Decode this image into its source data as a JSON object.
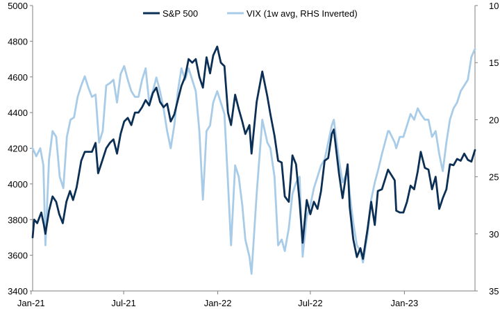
{
  "chart_data": {
    "type": "line",
    "legend": {
      "placement": "top-center"
    },
    "grid": false,
    "x_axis": {
      "type": "date",
      "range": [
        "2021-01-04",
        "2023-05-19"
      ],
      "ticks": [
        {
          "label": "Jan-21",
          "date": "2021-01-01"
        },
        {
          "label": "Jul-21",
          "date": "2021-07-01"
        },
        {
          "label": "Jan-22",
          "date": "2022-01-01"
        },
        {
          "label": "Jul-22",
          "date": "2022-07-01"
        },
        {
          "label": "Jan-23",
          "date": "2023-01-01"
        }
      ]
    },
    "y_left": {
      "range": [
        3400,
        5000
      ],
      "ticks": [
        3400,
        3600,
        3800,
        4000,
        4200,
        4400,
        4600,
        4800,
        5000
      ]
    },
    "y_right": {
      "range": [
        10,
        35
      ],
      "inverted": true,
      "ticks": [
        10,
        15,
        20,
        25,
        30,
        35
      ]
    },
    "series": [
      {
        "name": "S&P 500",
        "axis": "left",
        "color": "#0b2f55",
        "points": [
          [
            "2021-01-04",
            3700
          ],
          [
            "2021-01-07",
            3800
          ],
          [
            "2021-01-13",
            3780
          ],
          [
            "2021-01-21",
            3840
          ],
          [
            "2021-01-26",
            3770
          ],
          [
            "2021-01-29",
            3720
          ],
          [
            "2021-02-05",
            3850
          ],
          [
            "2021-02-12",
            3930
          ],
          [
            "2021-02-19",
            3900
          ],
          [
            "2021-02-25",
            3830
          ],
          [
            "2021-03-04",
            3780
          ],
          [
            "2021-03-11",
            3900
          ],
          [
            "2021-03-18",
            3960
          ],
          [
            "2021-03-24",
            3910
          ],
          [
            "2021-03-31",
            3980
          ],
          [
            "2021-04-09",
            4130
          ],
          [
            "2021-04-16",
            4180
          ],
          [
            "2021-04-23",
            4180
          ],
          [
            "2021-04-30",
            4180
          ],
          [
            "2021-05-07",
            4230
          ],
          [
            "2021-05-12",
            4060
          ],
          [
            "2021-05-19",
            4120
          ],
          [
            "2021-05-28",
            4200
          ],
          [
            "2021-06-04",
            4230
          ],
          [
            "2021-06-11",
            4250
          ],
          [
            "2021-06-18",
            4170
          ],
          [
            "2021-06-25",
            4280
          ],
          [
            "2021-07-02",
            4350
          ],
          [
            "2021-07-09",
            4370
          ],
          [
            "2021-07-16",
            4330
          ],
          [
            "2021-07-23",
            4400
          ],
          [
            "2021-07-30",
            4400
          ],
          [
            "2021-08-06",
            4430
          ],
          [
            "2021-08-13",
            4470
          ],
          [
            "2021-08-20",
            4440
          ],
          [
            "2021-08-27",
            4510
          ],
          [
            "2021-09-03",
            4540
          ],
          [
            "2021-09-10",
            4460
          ],
          [
            "2021-09-17",
            4430
          ],
          [
            "2021-09-24",
            4450
          ],
          [
            "2021-10-01",
            4350
          ],
          [
            "2021-10-08",
            4390
          ],
          [
            "2021-10-15",
            4470
          ],
          [
            "2021-10-22",
            4550
          ],
          [
            "2021-10-29",
            4600
          ],
          [
            "2021-11-05",
            4700
          ],
          [
            "2021-11-12",
            4680
          ],
          [
            "2021-11-19",
            4700
          ],
          [
            "2021-11-26",
            4600
          ],
          [
            "2021-12-03",
            4540
          ],
          [
            "2021-12-10",
            4710
          ],
          [
            "2021-12-17",
            4620
          ],
          [
            "2021-12-23",
            4720
          ],
          [
            "2021-12-31",
            4770
          ],
          [
            "2022-01-07",
            4680
          ],
          [
            "2022-01-14",
            4660
          ],
          [
            "2022-01-21",
            4400
          ],
          [
            "2022-01-27",
            4330
          ],
          [
            "2022-02-04",
            4500
          ],
          [
            "2022-02-11",
            4420
          ],
          [
            "2022-02-18",
            4350
          ],
          [
            "2022-02-24",
            4280
          ],
          [
            "2022-03-04",
            4330
          ],
          [
            "2022-03-08",
            4170
          ],
          [
            "2022-03-18",
            4460
          ],
          [
            "2022-03-29",
            4630
          ],
          [
            "2022-04-08",
            4490
          ],
          [
            "2022-04-14",
            4390
          ],
          [
            "2022-04-22",
            4270
          ],
          [
            "2022-04-29",
            4130
          ],
          [
            "2022-05-06",
            4120
          ],
          [
            "2022-05-12",
            3930
          ],
          [
            "2022-05-20",
            3900
          ],
          [
            "2022-05-27",
            4160
          ],
          [
            "2022-06-03",
            4110
          ],
          [
            "2022-06-10",
            3900
          ],
          [
            "2022-06-16",
            3670
          ],
          [
            "2022-06-24",
            3910
          ],
          [
            "2022-07-01",
            3830
          ],
          [
            "2022-07-08",
            3900
          ],
          [
            "2022-07-15",
            3860
          ],
          [
            "2022-07-22",
            3960
          ],
          [
            "2022-07-29",
            4130
          ],
          [
            "2022-08-05",
            4145
          ],
          [
            "2022-08-12",
            4280
          ],
          [
            "2022-08-16",
            4305
          ],
          [
            "2022-08-26",
            4060
          ],
          [
            "2022-09-02",
            3920
          ],
          [
            "2022-09-12",
            4110
          ],
          [
            "2022-09-16",
            3870
          ],
          [
            "2022-09-23",
            3690
          ],
          [
            "2022-09-30",
            3590
          ],
          [
            "2022-10-07",
            3640
          ],
          [
            "2022-10-12",
            3580
          ],
          [
            "2022-10-21",
            3750
          ],
          [
            "2022-10-28",
            3900
          ],
          [
            "2022-11-04",
            3770
          ],
          [
            "2022-11-10",
            3960
          ],
          [
            "2022-11-18",
            3970
          ],
          [
            "2022-11-30",
            4080
          ],
          [
            "2022-12-02",
            4070
          ],
          [
            "2022-12-13",
            4020
          ],
          [
            "2022-12-16",
            3850
          ],
          [
            "2022-12-23",
            3840
          ],
          [
            "2022-12-30",
            3840
          ],
          [
            "2023-01-06",
            3900
          ],
          [
            "2023-01-13",
            3990
          ],
          [
            "2023-01-20",
            3970
          ],
          [
            "2023-01-27",
            4070
          ],
          [
            "2023-02-02",
            4180
          ],
          [
            "2023-02-10",
            4090
          ],
          [
            "2023-02-17",
            4080
          ],
          [
            "2023-02-24",
            3970
          ],
          [
            "2023-03-03",
            4040
          ],
          [
            "2023-03-10",
            3860
          ],
          [
            "2023-03-17",
            3920
          ],
          [
            "2023-03-24",
            3970
          ],
          [
            "2023-03-31",
            4110
          ],
          [
            "2023-04-07",
            4105
          ],
          [
            "2023-04-14",
            4140
          ],
          [
            "2023-04-21",
            4130
          ],
          [
            "2023-04-28",
            4170
          ],
          [
            "2023-05-05",
            4135
          ],
          [
            "2023-05-12",
            4125
          ],
          [
            "2023-05-19",
            4190
          ]
        ]
      },
      {
        "name": "VIX (1w avg, RHS Inverted)",
        "axis": "right",
        "color": "#a8cce8",
        "points": [
          [
            "2021-01-04",
            22.5
          ],
          [
            "2021-01-11",
            23.2
          ],
          [
            "2021-01-19",
            22.5
          ],
          [
            "2021-01-25",
            24.0
          ],
          [
            "2021-01-29",
            31.0
          ],
          [
            "2021-02-05",
            23.5
          ],
          [
            "2021-02-12",
            21.0
          ],
          [
            "2021-02-19",
            21.5
          ],
          [
            "2021-02-26",
            25.0
          ],
          [
            "2021-03-05",
            26.0
          ],
          [
            "2021-03-12",
            21.5
          ],
          [
            "2021-03-19",
            20.0
          ],
          [
            "2021-03-26",
            19.8
          ],
          [
            "2021-04-02",
            18.0
          ],
          [
            "2021-04-09",
            17.0
          ],
          [
            "2021-04-16",
            16.2
          ],
          [
            "2021-04-23",
            17.2
          ],
          [
            "2021-04-30",
            18.0
          ],
          [
            "2021-05-07",
            17.8
          ],
          [
            "2021-05-14",
            22.0
          ],
          [
            "2021-05-21",
            21.0
          ],
          [
            "2021-05-28",
            17.0
          ],
          [
            "2021-06-04",
            16.8
          ],
          [
            "2021-06-11",
            16.5
          ],
          [
            "2021-06-18",
            18.5
          ],
          [
            "2021-06-25",
            16.0
          ],
          [
            "2021-07-02",
            15.3
          ],
          [
            "2021-07-09",
            16.5
          ],
          [
            "2021-07-16",
            17.5
          ],
          [
            "2021-07-23",
            18.0
          ],
          [
            "2021-07-30",
            18.0
          ],
          [
            "2021-08-06",
            16.5
          ],
          [
            "2021-08-13",
            15.5
          ],
          [
            "2021-08-20",
            18.5
          ],
          [
            "2021-08-27",
            17.5
          ],
          [
            "2021-09-03",
            16.3
          ],
          [
            "2021-09-10",
            17.5
          ],
          [
            "2021-09-17",
            19.0
          ],
          [
            "2021-09-24",
            21.0
          ],
          [
            "2021-10-01",
            22.5
          ],
          [
            "2021-10-08",
            20.5
          ],
          [
            "2021-10-15",
            17.5
          ],
          [
            "2021-10-22",
            15.5
          ],
          [
            "2021-10-29",
            16.5
          ],
          [
            "2021-11-05",
            15.5
          ],
          [
            "2021-11-12",
            16.5
          ],
          [
            "2021-11-19",
            17.5
          ],
          [
            "2021-11-26",
            21.0
          ],
          [
            "2021-12-03",
            27.0
          ],
          [
            "2021-12-10",
            21.0
          ],
          [
            "2021-12-17",
            20.5
          ],
          [
            "2021-12-23",
            18.5
          ],
          [
            "2021-12-31",
            17.5
          ],
          [
            "2022-01-07",
            18.5
          ],
          [
            "2022-01-14",
            19.5
          ],
          [
            "2022-01-21",
            25.5
          ],
          [
            "2022-01-27",
            31.0
          ],
          [
            "2022-02-04",
            24.0
          ],
          [
            "2022-02-11",
            25.0
          ],
          [
            "2022-02-18",
            27.5
          ],
          [
            "2022-02-24",
            30.5
          ],
          [
            "2022-03-04",
            32.0
          ],
          [
            "2022-03-08",
            33.5
          ],
          [
            "2022-03-18",
            26.5
          ],
          [
            "2022-03-29",
            20.0
          ],
          [
            "2022-04-08",
            22.0
          ],
          [
            "2022-04-14",
            22.5
          ],
          [
            "2022-04-22",
            25.0
          ],
          [
            "2022-04-29",
            31.0
          ],
          [
            "2022-05-06",
            30.5
          ],
          [
            "2022-05-12",
            31.5
          ],
          [
            "2022-05-20",
            29.5
          ],
          [
            "2022-05-27",
            26.5
          ],
          [
            "2022-06-03",
            25.5
          ],
          [
            "2022-06-10",
            25.0
          ],
          [
            "2022-06-16",
            32.0
          ],
          [
            "2022-06-24",
            28.5
          ],
          [
            "2022-07-01",
            27.5
          ],
          [
            "2022-07-08",
            26.0
          ],
          [
            "2022-07-15",
            25.0
          ],
          [
            "2022-07-22",
            24.0
          ],
          [
            "2022-07-29",
            23.5
          ],
          [
            "2022-08-05",
            22.0
          ],
          [
            "2022-08-12",
            20.5
          ],
          [
            "2022-08-16",
            20.0
          ],
          [
            "2022-08-26",
            23.5
          ],
          [
            "2022-09-02",
            25.5
          ],
          [
            "2022-09-12",
            24.5
          ],
          [
            "2022-09-16",
            26.5
          ],
          [
            "2022-09-23",
            29.0
          ],
          [
            "2022-09-30",
            31.0
          ],
          [
            "2022-10-07",
            31.5
          ],
          [
            "2022-10-12",
            32.5
          ],
          [
            "2022-10-21",
            30.0
          ],
          [
            "2022-10-28",
            27.0
          ],
          [
            "2022-11-04",
            25.5
          ],
          [
            "2022-11-10",
            24.5
          ],
          [
            "2022-11-18",
            23.0
          ],
          [
            "2022-11-30",
            21.0
          ],
          [
            "2022-12-02",
            21.0
          ],
          [
            "2022-12-13",
            22.0
          ],
          [
            "2022-12-16",
            22.5
          ],
          [
            "2022-12-23",
            21.5
          ],
          [
            "2022-12-30",
            21.5
          ],
          [
            "2023-01-06",
            20.5
          ],
          [
            "2023-01-13",
            19.5
          ],
          [
            "2023-01-20",
            20.0
          ],
          [
            "2023-01-27",
            19.0
          ],
          [
            "2023-02-02",
            19.5
          ],
          [
            "2023-02-10",
            20.0
          ],
          [
            "2023-02-17",
            20.0
          ],
          [
            "2023-02-24",
            21.5
          ],
          [
            "2023-03-03",
            21.0
          ],
          [
            "2023-03-10",
            23.0
          ],
          [
            "2023-03-17",
            24.5
          ],
          [
            "2023-03-24",
            22.0
          ],
          [
            "2023-03-31",
            20.0
          ],
          [
            "2023-04-07",
            19.0
          ],
          [
            "2023-04-14",
            18.5
          ],
          [
            "2023-04-21",
            17.5
          ],
          [
            "2023-04-28",
            17.0
          ],
          [
            "2023-05-05",
            16.5
          ],
          [
            "2023-05-12",
            14.5
          ],
          [
            "2023-05-19",
            13.8
          ]
        ]
      }
    ]
  }
}
